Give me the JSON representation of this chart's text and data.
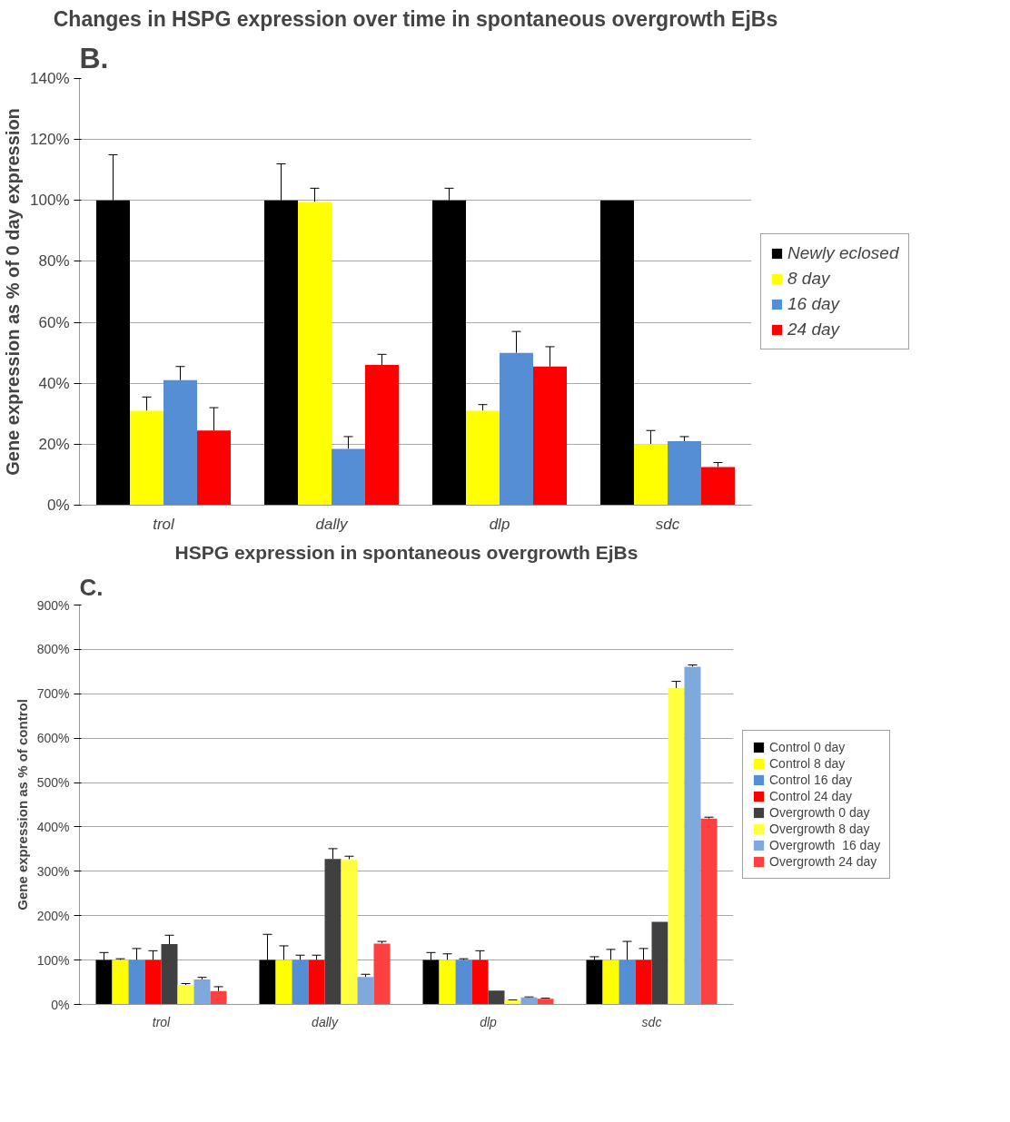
{
  "chart_data": [
    {
      "type": "bar",
      "title": "Changes in HSPG expression over time in spontaneous overgrowth EjBs",
      "ylabel": "Gene expression as % of 0 day expression",
      "annotations": [
        "B."
      ],
      "categories": [
        "trol",
        "dally",
        "dlp",
        "sdc"
      ],
      "series": [
        {
          "name": "Newly eclosed",
          "color": "#000000",
          "values": [
            100,
            100,
            100,
            100
          ],
          "errors": [
            [
              100,
              115
            ],
            [
              100,
              112
            ],
            [
              100,
              104
            ],
            null
          ]
        },
        {
          "name": "8 day",
          "color": "#ffff00",
          "values": [
            31,
            99.5,
            31,
            20
          ],
          "errors": [
            [
              31,
              35.5
            ],
            [
              99.5,
              104
            ],
            [
              31,
              33
            ],
            [
              20,
              24.5
            ]
          ]
        },
        {
          "name": "16 day",
          "color": "#558ed5",
          "values": [
            41,
            18.5,
            50,
            21
          ],
          "errors": [
            [
              41,
              45.5
            ],
            [
              18.5,
              22.5
            ],
            [
              50,
              57
            ],
            [
              21,
              22.5
            ]
          ]
        },
        {
          "name": "24 day",
          "color": "#ff0000",
          "values": [
            24.5,
            46,
            45.5,
            12.5
          ],
          "errors": [
            [
              24.5,
              32
            ],
            [
              46,
              49.5
            ],
            [
              45.5,
              52
            ],
            [
              12.5,
              14
            ]
          ]
        }
      ],
      "ylim": [
        0,
        140
      ],
      "yticks": [
        {
          "value": 0,
          "label": "0%"
        },
        {
          "value": 20,
          "label": "20%"
        },
        {
          "value": 40,
          "label": "40%"
        },
        {
          "value": 60,
          "label": "60%"
        },
        {
          "value": 80,
          "label": "80%"
        },
        {
          "value": 100,
          "label": "100%"
        },
        {
          "value": 120,
          "label": "120%"
        },
        {
          "value": 140,
          "label": "140%"
        }
      ],
      "grid": "y",
      "legend": "right"
    },
    {
      "type": "bar",
      "title": "HSPG expression in spontaneous overgrowth EjBs",
      "ylabel": "Gene expression as % of control",
      "annotations": [
        "C."
      ],
      "categories": [
        "trol",
        "dally",
        "dlp",
        "sdc"
      ],
      "series": [
        {
          "name": "Control 0 day",
          "color": "#000000",
          "values": [
            100,
            100,
            100,
            100
          ],
          "errors": [
            [
              100,
              117
            ],
            [
              100,
              158
            ],
            [
              100,
              117
            ],
            [
              100,
              107.5
            ]
          ]
        },
        {
          "name": "Control 8 day",
          "color": "#ffff00",
          "values": [
            100,
            100,
            100,
            100
          ],
          "errors": [
            [
              100,
              103
            ],
            [
              100,
              132
            ],
            [
              100,
              114
            ],
            [
              100,
              124
            ]
          ]
        },
        {
          "name": "Control 16 day",
          "color": "#558ed5",
          "values": [
            100,
            100,
            100,
            100
          ],
          "errors": [
            [
              100,
              126
            ],
            [
              100,
              111
            ],
            [
              100,
              103
            ],
            [
              100,
              142
            ]
          ]
        },
        {
          "name": "Control 24 day",
          "color": "#ff0000",
          "values": [
            100,
            100,
            100,
            100
          ],
          "errors": [
            [
              100,
              121
            ],
            [
              100,
              111
            ],
            [
              100,
              121
            ],
            [
              100,
              126
            ]
          ]
        },
        {
          "name": "Overgrowth 0 day",
          "color": "#404040",
          "values": [
            136,
            328,
            31,
            186
          ],
          "errors": [
            [
              136,
              156
            ],
            [
              328,
              351
            ],
            null,
            null
          ]
        },
        {
          "name": "Overgrowth 8 day",
          "color": "#ffff40",
          "values": [
            44,
            327,
            9,
            713
          ],
          "errors": [
            [
              44,
              47
            ],
            [
              327,
              334
            ],
            [
              9,
              10
            ],
            [
              713,
              728
            ]
          ]
        },
        {
          "name": "Overgrowth  16 day",
          "color": "#7fa8dc",
          "values": [
            56,
            62,
            16,
            761
          ],
          "errors": [
            [
              56,
              61
            ],
            [
              62,
              68
            ],
            [
              16,
              17
            ],
            [
              761,
              765
            ]
          ]
        },
        {
          "name": "Overgrowth 24 day",
          "color": "#ff4040",
          "values": [
            30,
            137,
            13,
            419
          ],
          "errors": [
            [
              30,
              40
            ],
            [
              137,
              142
            ],
            [
              13,
              14
            ],
            [
              419,
              422
            ]
          ]
        }
      ],
      "ylim": [
        0,
        900
      ],
      "yticks": [
        {
          "value": 0,
          "label": "0%"
        },
        {
          "value": 100,
          "label": "100%"
        },
        {
          "value": 200,
          "label": "200%"
        },
        {
          "value": 300,
          "label": "300%"
        },
        {
          "value": 400,
          "label": "400%"
        },
        {
          "value": 500,
          "label": "500%"
        },
        {
          "value": 600,
          "label": "600%"
        },
        {
          "value": 700,
          "label": "700%"
        },
        {
          "value": 800,
          "label": "800%"
        },
        {
          "value": 900,
          "label": "900%"
        }
      ],
      "grid": "y",
      "legend": "right"
    }
  ]
}
